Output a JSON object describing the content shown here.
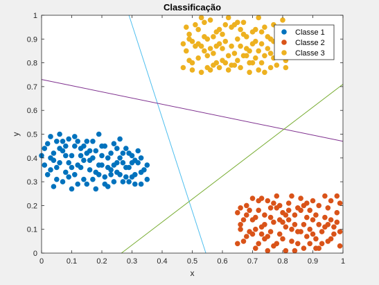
{
  "chart_data": {
    "type": "scatter",
    "title": "Classificação",
    "xlabel": "x",
    "ylabel": "y",
    "xlim": [
      0,
      1
    ],
    "ylim": [
      0,
      1
    ],
    "xticks": [
      "0",
      "0.1",
      "0.2",
      "0.3",
      "0.4",
      "0.5",
      "0.6",
      "0.7",
      "0.8",
      "0.9",
      "1"
    ],
    "yticks": [
      "0",
      "0.1",
      "0.2",
      "0.3",
      "0.4",
      "0.5",
      "0.6",
      "0.7",
      "0.8",
      "0.9",
      "1"
    ],
    "grid": false,
    "legend_position": "top-right",
    "series": [
      {
        "name": "Classe 1",
        "color": "#0072BD",
        "x_range": [
          0.0,
          0.36
        ],
        "y_range": [
          0.25,
          0.51
        ],
        "points": [
          [
            0.01,
            0.44
          ],
          [
            0.02,
            0.46
          ],
          [
            0.03,
            0.49
          ],
          [
            0.04,
            0.42
          ],
          [
            0.05,
            0.36
          ],
          [
            0.06,
            0.38
          ],
          [
            0.07,
            0.3
          ],
          [
            0.08,
            0.45
          ],
          [
            0.09,
            0.48
          ],
          [
            0.1,
            0.41
          ],
          [
            0.11,
            0.33
          ],
          [
            0.12,
            0.29
          ],
          [
            0.13,
            0.44
          ],
          [
            0.14,
            0.39
          ],
          [
            0.15,
            0.47
          ],
          [
            0.16,
            0.35
          ],
          [
            0.17,
            0.31
          ],
          [
            0.18,
            0.43
          ],
          [
            0.19,
            0.5
          ],
          [
            0.2,
            0.37
          ],
          [
            0.21,
            0.32
          ],
          [
            0.22,
            0.28
          ],
          [
            0.23,
            0.42
          ],
          [
            0.24,
            0.46
          ],
          [
            0.25,
            0.34
          ],
          [
            0.26,
            0.4
          ],
          [
            0.27,
            0.3
          ],
          [
            0.28,
            0.44
          ],
          [
            0.29,
            0.36
          ],
          [
            0.3,
            0.41
          ],
          [
            0.31,
            0.33
          ],
          [
            0.32,
            0.38
          ],
          [
            0.33,
            0.29
          ],
          [
            0.34,
            0.35
          ],
          [
            0.35,
            0.31
          ],
          [
            0.02,
            0.33
          ],
          [
            0.04,
            0.28
          ],
          [
            0.06,
            0.5
          ],
          [
            0.08,
            0.34
          ],
          [
            0.1,
            0.27
          ],
          [
            0.12,
            0.47
          ],
          [
            0.14,
            0.31
          ],
          [
            0.16,
            0.43
          ],
          [
            0.18,
            0.27
          ],
          [
            0.2,
            0.45
          ],
          [
            0.22,
            0.4
          ],
          [
            0.24,
            0.3
          ],
          [
            0.26,
            0.48
          ],
          [
            0.28,
            0.36
          ],
          [
            0.3,
            0.32
          ],
          [
            0.32,
            0.43
          ],
          [
            0.01,
            0.37
          ],
          [
            0.03,
            0.4
          ],
          [
            0.05,
            0.47
          ],
          [
            0.07,
            0.43
          ],
          [
            0.09,
            0.38
          ],
          [
            0.11,
            0.45
          ],
          [
            0.13,
            0.36
          ],
          [
            0.15,
            0.29
          ],
          [
            0.17,
            0.4
          ],
          [
            0.19,
            0.33
          ],
          [
            0.21,
            0.45
          ],
          [
            0.23,
            0.35
          ],
          [
            0.25,
            0.44
          ],
          [
            0.27,
            0.38
          ],
          [
            0.29,
            0.42
          ],
          [
            0.31,
            0.39
          ],
          [
            0.33,
            0.34
          ],
          [
            0.05,
            0.31
          ],
          [
            0.09,
            0.32
          ],
          [
            0.13,
            0.41
          ],
          [
            0.17,
            0.47
          ],
          [
            0.21,
            0.29
          ],
          [
            0.25,
            0.38
          ],
          [
            0.29,
            0.3
          ],
          [
            0.33,
            0.4
          ],
          [
            0.04,
            0.39
          ],
          [
            0.08,
            0.41
          ],
          [
            0.12,
            0.37
          ],
          [
            0.16,
            0.39
          ],
          [
            0.2,
            0.41
          ],
          [
            0.24,
            0.37
          ],
          [
            0.28,
            0.32
          ],
          [
            0.0,
            0.41
          ],
          [
            0.06,
            0.44
          ],
          [
            0.11,
            0.49
          ],
          [
            0.15,
            0.42
          ],
          [
            0.19,
            0.37
          ],
          [
            0.23,
            0.33
          ],
          [
            0.27,
            0.42
          ],
          [
            0.31,
            0.29
          ],
          [
            0.35,
            0.37
          ],
          [
            0.03,
            0.35
          ],
          [
            0.07,
            0.47
          ],
          [
            0.1,
            0.36
          ],
          [
            0.14,
            0.45
          ],
          [
            0.18,
            0.34
          ],
          [
            0.22,
            0.36
          ],
          [
            0.26,
            0.33
          ],
          [
            0.3,
            0.38
          ]
        ]
      },
      {
        "name": "Classe 2",
        "color": "#D95319",
        "x_range": [
          0.64,
          1.0
        ],
        "y_range": [
          0.0,
          0.25
        ],
        "points": [
          [
            0.65,
            0.17
          ],
          [
            0.66,
            0.12
          ],
          [
            0.67,
            0.05
          ],
          [
            0.68,
            0.2
          ],
          [
            0.69,
            0.09
          ],
          [
            0.7,
            0.14
          ],
          [
            0.71,
            0.02
          ],
          [
            0.72,
            0.18
          ],
          [
            0.73,
            0.11
          ],
          [
            0.74,
            0.06
          ],
          [
            0.75,
            0.22
          ],
          [
            0.76,
            0.15
          ],
          [
            0.77,
            0.03
          ],
          [
            0.78,
            0.19
          ],
          [
            0.79,
            0.08
          ],
          [
            0.8,
            0.13
          ],
          [
            0.81,
            0.01
          ],
          [
            0.82,
            0.21
          ],
          [
            0.83,
            0.1
          ],
          [
            0.84,
            0.16
          ],
          [
            0.85,
            0.04
          ],
          [
            0.86,
            0.23
          ],
          [
            0.87,
            0.12
          ],
          [
            0.88,
            0.07
          ],
          [
            0.89,
            0.18
          ],
          [
            0.9,
            0.14
          ],
          [
            0.91,
            0.02
          ],
          [
            0.92,
            0.2
          ],
          [
            0.93,
            0.09
          ],
          [
            0.94,
            0.15
          ],
          [
            0.95,
            0.05
          ],
          [
            0.96,
            0.22
          ],
          [
            0.97,
            0.11
          ],
          [
            0.98,
            0.17
          ],
          [
            0.99,
            0.03
          ],
          [
            0.66,
            0.19
          ],
          [
            0.68,
            0.07
          ],
          [
            0.7,
            0.23
          ],
          [
            0.72,
            0.04
          ],
          [
            0.74,
            0.16
          ],
          [
            0.76,
            0.09
          ],
          [
            0.78,
            0.24
          ],
          [
            0.8,
            0.06
          ],
          [
            0.82,
            0.14
          ],
          [
            0.84,
            0.01
          ],
          [
            0.86,
            0.18
          ],
          [
            0.88,
            0.21
          ],
          [
            0.9,
            0.08
          ],
          [
            0.92,
            0.12
          ],
          [
            0.94,
            0.24
          ],
          [
            0.96,
            0.06
          ],
          [
            0.98,
            0.13
          ],
          [
            0.67,
            0.14
          ],
          [
            0.69,
            0.18
          ],
          [
            0.71,
            0.1
          ],
          [
            0.73,
            0.23
          ],
          [
            0.75,
            0.07
          ],
          [
            0.77,
            0.13
          ],
          [
            0.79,
            0.2
          ],
          [
            0.81,
            0.11
          ],
          [
            0.83,
            0.05
          ],
          [
            0.85,
            0.19
          ],
          [
            0.87,
            0.02
          ],
          [
            0.89,
            0.1
          ],
          [
            0.91,
            0.16
          ],
          [
            0.93,
            0.04
          ],
          [
            0.95,
            0.19
          ],
          [
            0.97,
            0.08
          ],
          [
            0.99,
            0.21
          ],
          [
            0.65,
            0.04
          ],
          [
            0.7,
            0.08
          ],
          [
            0.74,
            0.12
          ],
          [
            0.78,
            0.04
          ],
          [
            0.82,
            0.18
          ],
          [
            0.86,
            0.09
          ],
          [
            0.9,
            0.22
          ],
          [
            0.94,
            0.11
          ],
          [
            0.98,
            0.24
          ],
          [
            0.68,
            0.16
          ],
          [
            0.72,
            0.22
          ],
          [
            0.76,
            0.19
          ],
          [
            0.8,
            0.17
          ],
          [
            0.84,
            0.12
          ],
          [
            0.88,
            0.15
          ],
          [
            0.92,
            0.02
          ],
          [
            0.96,
            0.14
          ],
          [
            0.66,
            0.1
          ],
          [
            0.71,
            0.15
          ],
          [
            0.75,
            0.01
          ],
          [
            0.79,
            0.14
          ],
          [
            0.83,
            0.24
          ],
          [
            0.87,
            0.2
          ],
          [
            0.91,
            0.06
          ],
          [
            0.95,
            0.12
          ],
          [
            0.99,
            0.09
          ],
          [
            0.73,
            0.08
          ],
          [
            0.77,
            0.21
          ],
          [
            0.81,
            0.16
          ],
          [
            0.85,
            0.09
          ],
          [
            0.89,
            0.04
          ]
        ]
      },
      {
        "name": "Classe 3",
        "color": "#EDB120",
        "x_range": [
          0.47,
          0.82
        ],
        "y_range": [
          0.75,
          1.0
        ],
        "points": [
          [
            0.47,
            0.78
          ],
          [
            0.48,
            0.85
          ],
          [
            0.49,
            0.92
          ],
          [
            0.5,
            0.8
          ],
          [
            0.51,
            0.96
          ],
          [
            0.52,
            0.88
          ],
          [
            0.53,
            0.76
          ],
          [
            0.54,
            0.91
          ],
          [
            0.55,
            0.83
          ],
          [
            0.56,
            0.98
          ],
          [
            0.57,
            0.79
          ],
          [
            0.58,
            0.87
          ],
          [
            0.59,
            0.94
          ],
          [
            0.6,
            0.81
          ],
          [
            0.61,
            0.89
          ],
          [
            0.62,
            0.77
          ],
          [
            0.63,
            0.95
          ],
          [
            0.64,
            0.84
          ],
          [
            0.65,
            0.9
          ],
          [
            0.66,
            0.78
          ],
          [
            0.67,
            0.97
          ],
          [
            0.68,
            0.86
          ],
          [
            0.69,
            0.8
          ],
          [
            0.7,
            0.93
          ],
          [
            0.71,
            0.82
          ],
          [
            0.72,
            0.99
          ],
          [
            0.73,
            0.88
          ],
          [
            0.74,
            0.76
          ],
          [
            0.75,
            0.91
          ],
          [
            0.76,
            0.84
          ],
          [
            0.77,
            0.96
          ],
          [
            0.78,
            0.79
          ],
          [
            0.79,
            0.87
          ],
          [
            0.8,
            0.92
          ],
          [
            0.81,
            0.81
          ],
          [
            0.48,
            0.95
          ],
          [
            0.5,
            0.89
          ],
          [
            0.52,
            0.82
          ],
          [
            0.54,
            0.97
          ],
          [
            0.56,
            0.77
          ],
          [
            0.58,
            0.93
          ],
          [
            0.6,
            0.86
          ],
          [
            0.62,
            0.99
          ],
          [
            0.64,
            0.79
          ],
          [
            0.66,
            0.94
          ],
          [
            0.68,
            0.83
          ],
          [
            0.7,
            0.88
          ],
          [
            0.72,
            0.77
          ],
          [
            0.74,
            0.95
          ],
          [
            0.76,
            0.9
          ],
          [
            0.78,
            0.85
          ],
          [
            0.8,
            0.98
          ],
          [
            0.49,
            0.81
          ],
          [
            0.51,
            0.87
          ],
          [
            0.53,
            0.99
          ],
          [
            0.55,
            0.9
          ],
          [
            0.57,
            0.84
          ],
          [
            0.59,
            0.78
          ],
          [
            0.61,
            0.96
          ],
          [
            0.63,
            0.87
          ],
          [
            0.65,
            0.81
          ],
          [
            0.67,
            0.92
          ],
          [
            0.69,
            0.76
          ],
          [
            0.71,
            0.94
          ],
          [
            0.73,
            0.8
          ],
          [
            0.75,
            0.86
          ],
          [
            0.77,
            0.89
          ],
          [
            0.79,
            0.95
          ],
          [
            0.81,
            0.78
          ],
          [
            0.47,
            0.88
          ],
          [
            0.52,
            0.94
          ],
          [
            0.56,
            0.86
          ],
          [
            0.6,
            0.92
          ],
          [
            0.64,
            0.96
          ],
          [
            0.68,
            0.91
          ],
          [
            0.72,
            0.85
          ],
          [
            0.76,
            0.78
          ],
          [
            0.8,
            0.85
          ],
          [
            0.5,
            0.77
          ],
          [
            0.54,
            0.85
          ],
          [
            0.58,
            0.8
          ],
          [
            0.62,
            0.83
          ],
          [
            0.66,
            0.87
          ],
          [
            0.7,
            0.8
          ],
          [
            0.74,
            0.83
          ],
          [
            0.78,
            0.93
          ],
          [
            0.49,
            0.9
          ],
          [
            0.53,
            0.87
          ],
          [
            0.57,
            0.91
          ],
          [
            0.61,
            0.8
          ],
          [
            0.65,
            0.97
          ],
          [
            0.69,
            0.85
          ],
          [
            0.73,
            0.93
          ],
          [
            0.77,
            0.82
          ],
          [
            0.81,
            0.94
          ],
          [
            0.55,
            0.78
          ],
          [
            0.59,
            0.88
          ],
          [
            0.63,
            0.79
          ],
          [
            0.67,
            0.83
          ],
          [
            0.71,
            0.89
          ]
        ]
      }
    ],
    "boundary_lines": [
      {
        "color": "#4DBEEE",
        "from": [
          0.29,
          1.0
        ],
        "to": [
          0.545,
          0.0
        ]
      },
      {
        "color": "#7E2F8E",
        "from": [
          0.0,
          0.73
        ],
        "to": [
          1.0,
          0.47
        ]
      },
      {
        "color": "#77AC30",
        "from": [
          0.265,
          0.0
        ],
        "to": [
          1.0,
          0.71
        ]
      }
    ]
  }
}
